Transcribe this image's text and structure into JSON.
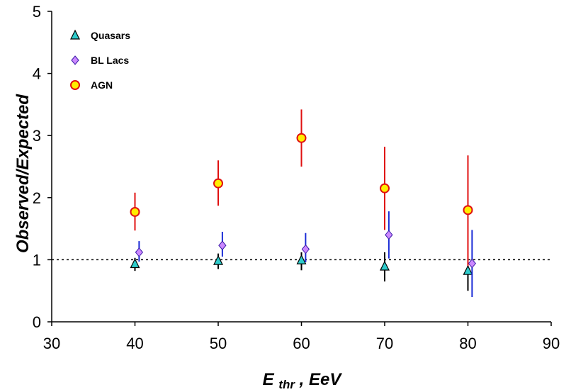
{
  "chart_data": {
    "type": "scatter",
    "title": "",
    "xlabel": "E thr, EeV",
    "xlabel_main": "E",
    "xlabel_sub": "thr",
    "xlabel_rest": ", EeV",
    "ylabel": "Observed/Expected",
    "xlim": [
      30,
      90
    ],
    "ylim": [
      0,
      5
    ],
    "xticks": [
      30,
      40,
      50,
      60,
      70,
      80,
      90
    ],
    "yticks": [
      0,
      1,
      2,
      3,
      4,
      5
    ],
    "reference_line": {
      "y": 1,
      "style": "dotted"
    },
    "series": [
      {
        "name": "Quasars",
        "marker": "triangle",
        "color": "#2ecccc",
        "error_color": "#000000",
        "points": [
          {
            "x": 40,
            "y": 0.93,
            "lo": 0.82,
            "hi": 1.03
          },
          {
            "x": 50,
            "y": 0.98,
            "lo": 0.85,
            "hi": 1.1
          },
          {
            "x": 60,
            "y": 0.99,
            "lo": 0.83,
            "hi": 1.12
          },
          {
            "x": 70,
            "y": 0.89,
            "lo": 0.65,
            "hi": 1.12
          },
          {
            "x": 80,
            "y": 0.82,
            "lo": 0.5,
            "hi": 1.1
          }
        ]
      },
      {
        "name": "BL Lacs",
        "marker": "diamond",
        "color": "#cc88ff",
        "error_color": "#1a2bd6",
        "points": [
          {
            "x": 40.5,
            "y": 1.12,
            "lo": 0.97,
            "hi": 1.3
          },
          {
            "x": 50.5,
            "y": 1.23,
            "lo": 1.05,
            "hi": 1.45
          },
          {
            "x": 60.5,
            "y": 1.17,
            "lo": 0.96,
            "hi": 1.43
          },
          {
            "x": 70.5,
            "y": 1.4,
            "lo": 1.02,
            "hi": 1.78
          },
          {
            "x": 80.5,
            "y": 0.94,
            "lo": 0.4,
            "hi": 1.48
          }
        ]
      },
      {
        "name": "AGN",
        "marker": "circle",
        "color": "#ffee00",
        "edge_color": "#e01010",
        "error_color": "#e01010",
        "points": [
          {
            "x": 40,
            "y": 1.77,
            "lo": 1.47,
            "hi": 2.08
          },
          {
            "x": 50,
            "y": 2.23,
            "lo": 1.87,
            "hi": 2.6
          },
          {
            "x": 60,
            "y": 2.96,
            "lo": 2.5,
            "hi": 3.42
          },
          {
            "x": 70,
            "y": 2.15,
            "lo": 1.48,
            "hi": 2.82
          },
          {
            "x": 80,
            "y": 1.8,
            "lo": 0.9,
            "hi": 2.68
          }
        ]
      }
    ]
  }
}
